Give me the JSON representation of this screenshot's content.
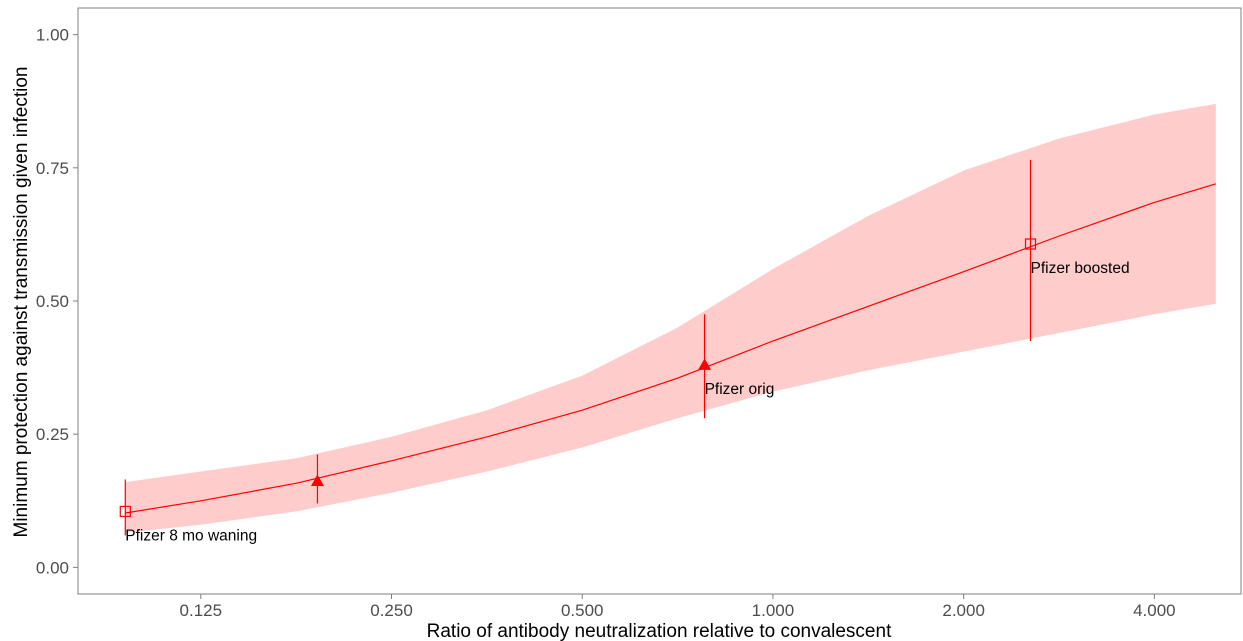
{
  "chart_data": {
    "type": "line",
    "title": "",
    "xlabel": "Ratio of antibody neutralization relative to convalescent",
    "ylabel": "Minimum protection against transmission given infection",
    "x_scale": "log2",
    "xlim": [
      0.08,
      5.48
    ],
    "ylim": [
      -0.05,
      1.05
    ],
    "x_ticks": [
      0.125,
      0.25,
      0.5,
      1.0,
      2.0,
      4.0
    ],
    "x_tick_labels": [
      "0.125",
      "0.250",
      "0.500",
      "1.000",
      "2.000",
      "4.000"
    ],
    "y_ticks": [
      0.0,
      0.25,
      0.5,
      0.75,
      1.0
    ],
    "y_tick_labels": [
      "0.00",
      "0.25",
      "0.50",
      "0.75",
      "1.00"
    ],
    "grid": false,
    "colors": {
      "line": "#ff0000",
      "ribbon": "#ffcccc",
      "text": "#000000",
      "tick_text": "#4d4d4d",
      "frame": "#7f7f7f"
    },
    "series": [
      {
        "x": [
          0.095,
          0.125,
          0.177,
          0.25,
          0.354,
          0.5,
          0.707,
          1.0,
          1.414,
          2.0,
          2.83,
          4.0,
          5.0
        ],
        "y": [
          0.102,
          0.125,
          0.158,
          0.2,
          0.245,
          0.295,
          0.355,
          0.425,
          0.49,
          0.555,
          0.622,
          0.685,
          0.72
        ],
        "lower": [
          0.065,
          0.08,
          0.105,
          0.14,
          0.18,
          0.225,
          0.28,
          0.33,
          0.37,
          0.405,
          0.44,
          0.475,
          0.495
        ],
        "upper": [
          0.16,
          0.18,
          0.205,
          0.245,
          0.295,
          0.36,
          0.45,
          0.56,
          0.66,
          0.745,
          0.805,
          0.85,
          0.87
        ]
      }
    ],
    "points": [
      {
        "label": "Pfizer 8 mo waning",
        "x": 0.095,
        "y": 0.105,
        "lo": 0.06,
        "hi": 0.165,
        "shape": "open-square"
      },
      {
        "label": "",
        "x": 0.191,
        "y": 0.162,
        "lo": 0.12,
        "hi": 0.212,
        "shape": "filled-triangle"
      },
      {
        "label": "Pfizer orig",
        "x": 0.78,
        "y": 0.38,
        "lo": 0.28,
        "hi": 0.475,
        "shape": "filled-triangle"
      },
      {
        "label": "Pfizer boosted",
        "x": 2.55,
        "y": 0.607,
        "lo": 0.425,
        "hi": 0.765,
        "shape": "open-square"
      }
    ]
  }
}
